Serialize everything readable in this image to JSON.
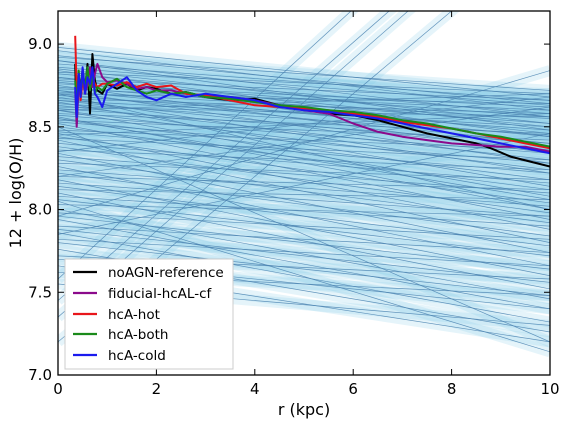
{
  "chart_data": {
    "type": "line",
    "xlabel": "r (kpc)",
    "ylabel": "12 + log(O/H)",
    "xlim": [
      0,
      10
    ],
    "ylim": [
      7.0,
      9.2
    ],
    "xticks": [
      0,
      2,
      4,
      6,
      8,
      10
    ],
    "yticks": [
      7.0,
      7.5,
      8.0,
      8.5,
      9.0
    ],
    "xtick_labels": [
      "0",
      "2",
      "4",
      "6",
      "8",
      "10"
    ],
    "ytick_labels": [
      "7.0",
      "7.5",
      "8.0",
      "8.5",
      "9.0"
    ],
    "grid": false,
    "legend_position": "lower-left",
    "observed_gradients": {
      "color": "#4a82b0",
      "band_color": "#87cde8",
      "lines": [
        [
          8.98,
          8.68
        ],
        [
          8.96,
          8.6
        ],
        [
          8.93,
          8.64
        ],
        [
          8.92,
          8.72
        ],
        [
          8.9,
          8.56
        ],
        [
          8.9,
          8.48
        ],
        [
          8.88,
          8.66
        ],
        [
          8.86,
          8.63
        ],
        [
          8.85,
          8.52
        ],
        [
          8.84,
          8.44
        ],
        [
          8.83,
          8.7
        ],
        [
          8.82,
          8.58
        ],
        [
          8.8,
          8.5
        ],
        [
          8.8,
          8.38
        ],
        [
          8.79,
          8.66
        ],
        [
          8.78,
          8.56
        ],
        [
          8.77,
          8.46
        ],
        [
          8.76,
          8.62
        ],
        [
          8.75,
          8.34
        ],
        [
          8.74,
          8.52
        ],
        [
          8.73,
          8.6
        ],
        [
          8.72,
          8.44
        ],
        [
          8.72,
          8.28
        ],
        [
          8.71,
          8.55
        ],
        [
          8.7,
          8.4
        ],
        [
          8.7,
          8.64
        ],
        [
          8.69,
          8.48
        ],
        [
          8.68,
          8.22
        ],
        [
          8.67,
          8.58
        ],
        [
          8.66,
          8.36
        ],
        [
          8.66,
          8.5
        ],
        [
          8.65,
          8.14
        ],
        [
          8.64,
          8.45
        ],
        [
          8.63,
          8.3
        ],
        [
          8.62,
          8.56
        ],
        [
          8.61,
          8.4
        ],
        [
          8.6,
          8.08
        ],
        [
          8.6,
          8.24
        ],
        [
          8.58,
          8.46
        ],
        [
          8.57,
          8.34
        ],
        [
          8.56,
          8.0
        ],
        [
          8.55,
          8.18
        ],
        [
          8.54,
          8.42
        ],
        [
          8.53,
          8.28
        ],
        [
          8.52,
          7.94
        ],
        [
          8.5,
          8.12
        ],
        [
          8.48,
          8.36
        ],
        [
          8.47,
          8.22
        ],
        [
          8.46,
          7.88
        ],
        [
          8.44,
          8.04
        ],
        [
          8.43,
          8.3
        ],
        [
          8.42,
          7.8
        ],
        [
          8.4,
          8.16
        ],
        [
          8.38,
          7.98
        ],
        [
          8.36,
          8.24
        ],
        [
          8.34,
          7.74
        ],
        [
          8.32,
          8.1
        ],
        [
          8.3,
          7.92
        ],
        [
          8.28,
          8.18
        ],
        [
          8.26,
          7.66
        ],
        [
          8.24,
          8.02
        ],
        [
          8.22,
          7.84
        ],
        [
          8.2,
          8.12
        ],
        [
          8.18,
          7.6
        ],
        [
          8.16,
          7.96
        ],
        [
          8.14,
          7.78
        ],
        [
          8.12,
          8.06
        ],
        [
          8.1,
          7.52
        ],
        [
          8.08,
          7.9
        ],
        [
          8.06,
          7.72
        ],
        [
          8.03,
          7.96
        ],
        [
          8.0,
          7.46
        ],
        [
          7.98,
          7.82
        ],
        [
          7.96,
          7.64
        ],
        [
          7.94,
          7.4
        ],
        [
          7.9,
          7.74
        ],
        [
          7.88,
          7.56
        ],
        [
          7.86,
          7.32
        ],
        [
          7.82,
          7.66
        ],
        [
          7.8,
          7.48
        ],
        [
          7.76,
          7.26
        ],
        [
          7.72,
          7.58
        ],
        [
          7.7,
          7.4
        ],
        [
          7.66,
          7.2
        ],
        [
          7.62,
          7.48
        ],
        [
          8.05,
          7.14
        ],
        [
          7.55,
          7.3
        ],
        [
          8.55,
          8.06
        ],
        [
          8.7,
          8.0
        ],
        [
          8.45,
          8.58
        ],
        [
          8.2,
          8.62
        ],
        [
          7.96,
          8.84
        ],
        [
          7.85,
          8.46
        ],
        [
          8.35,
          8.68
        ],
        [
          8.6,
          8.7
        ],
        [
          7.2,
          9.7
        ],
        [
          7.45,
          10.05
        ],
        [
          7.58,
          10.3
        ],
        [
          7.35,
          9.95
        ],
        [
          8.5,
          7.2
        ]
      ]
    },
    "series": [
      {
        "name": "noAGN-reference",
        "color": "#000000",
        "x": [
          0.35,
          0.38,
          0.42,
          0.46,
          0.5,
          0.55,
          0.6,
          0.65,
          0.7,
          0.75,
          0.8,
          0.9,
          1.0,
          1.2,
          1.4,
          1.6,
          1.8,
          2.0,
          2.3,
          2.6,
          3.0,
          3.5,
          4.0,
          4.5,
          5.0,
          5.5,
          6.0,
          6.5,
          7.0,
          7.5,
          8.0,
          8.5,
          8.8,
          9.2,
          9.6,
          10.0
        ],
        "y": [
          8.88,
          8.52,
          8.8,
          8.7,
          8.85,
          8.72,
          8.88,
          8.58,
          8.94,
          8.78,
          8.72,
          8.7,
          8.76,
          8.73,
          8.76,
          8.72,
          8.74,
          8.73,
          8.7,
          8.71,
          8.68,
          8.66,
          8.67,
          8.63,
          8.61,
          8.58,
          8.57,
          8.54,
          8.5,
          8.46,
          8.43,
          8.4,
          8.37,
          8.32,
          8.29,
          8.26
        ]
      },
      {
        "name": "fiducial-hcAL-cf",
        "color": "#8b0a8b",
        "x": [
          0.35,
          0.38,
          0.42,
          0.46,
          0.5,
          0.55,
          0.6,
          0.65,
          0.7,
          0.75,
          0.8,
          0.9,
          1.0,
          1.2,
          1.4,
          1.6,
          1.8,
          2.0,
          2.3,
          2.6,
          3.0,
          3.5,
          4.0,
          4.5,
          5.0,
          5.5,
          6.0,
          6.5,
          7.0,
          7.5,
          8.0,
          8.5,
          9.0,
          9.5,
          10.0
        ],
        "y": [
          8.72,
          8.5,
          8.76,
          8.68,
          8.8,
          8.71,
          8.75,
          8.86,
          8.74,
          8.82,
          8.88,
          8.8,
          8.77,
          8.78,
          8.76,
          8.73,
          8.74,
          8.72,
          8.72,
          8.7,
          8.69,
          8.68,
          8.66,
          8.63,
          8.6,
          8.58,
          8.52,
          8.47,
          8.44,
          8.42,
          8.4,
          8.39,
          8.38,
          8.38,
          8.35
        ]
      },
      {
        "name": "hcA-hot",
        "color": "#e8161b",
        "x": [
          0.35,
          0.38,
          0.42,
          0.46,
          0.5,
          0.55,
          0.6,
          0.65,
          0.7,
          0.75,
          0.8,
          0.9,
          1.0,
          1.2,
          1.4,
          1.6,
          1.8,
          2.0,
          2.3,
          2.6,
          3.0,
          3.5,
          4.0,
          4.5,
          5.0,
          5.5,
          6.0,
          6.5,
          7.0,
          7.5,
          8.0,
          8.5,
          9.0,
          9.5,
          10.0
        ],
        "y": [
          9.05,
          8.72,
          8.82,
          8.66,
          8.78,
          8.7,
          8.82,
          8.74,
          8.8,
          8.76,
          8.74,
          8.76,
          8.76,
          8.75,
          8.77,
          8.74,
          8.76,
          8.74,
          8.75,
          8.7,
          8.69,
          8.66,
          8.63,
          8.62,
          8.61,
          8.6,
          8.58,
          8.56,
          8.53,
          8.51,
          8.49,
          8.46,
          8.43,
          8.4,
          8.37
        ]
      },
      {
        "name": "hcA-both",
        "color": "#1a8a1a",
        "x": [
          0.35,
          0.38,
          0.42,
          0.46,
          0.5,
          0.55,
          0.6,
          0.65,
          0.7,
          0.75,
          0.8,
          0.9,
          1.0,
          1.2,
          1.4,
          1.6,
          1.8,
          2.0,
          2.3,
          2.6,
          3.0,
          3.5,
          4.0,
          4.5,
          5.0,
          5.5,
          6.0,
          6.5,
          7.0,
          7.5,
          8.0,
          8.5,
          9.0,
          9.5,
          10.0
        ],
        "y": [
          8.78,
          8.6,
          8.84,
          8.7,
          8.8,
          8.74,
          8.86,
          8.72,
          8.82,
          8.7,
          8.74,
          8.72,
          8.76,
          8.79,
          8.74,
          8.72,
          8.7,
          8.72,
          8.7,
          8.71,
          8.68,
          8.67,
          8.65,
          8.63,
          8.62,
          8.6,
          8.59,
          8.57,
          8.54,
          8.52,
          8.49,
          8.46,
          8.44,
          8.41,
          8.38
        ]
      },
      {
        "name": "hcA-cold",
        "color": "#1a1aee",
        "x": [
          0.35,
          0.38,
          0.42,
          0.46,
          0.5,
          0.55,
          0.6,
          0.65,
          0.7,
          0.75,
          0.8,
          0.9,
          1.0,
          1.2,
          1.4,
          1.6,
          1.8,
          2.0,
          2.3,
          2.6,
          3.0,
          3.5,
          4.0,
          4.5,
          5.0,
          5.5,
          6.0,
          6.5,
          7.0,
          7.5,
          8.0,
          8.5,
          9.0,
          9.5,
          10.0
        ],
        "y": [
          8.74,
          8.56,
          8.82,
          8.68,
          8.86,
          8.7,
          8.8,
          8.76,
          8.86,
          8.7,
          8.68,
          8.62,
          8.72,
          8.76,
          8.8,
          8.72,
          8.68,
          8.66,
          8.7,
          8.68,
          8.7,
          8.68,
          8.66,
          8.62,
          8.6,
          8.59,
          8.57,
          8.55,
          8.52,
          8.49,
          8.46,
          8.43,
          8.4,
          8.37,
          8.34
        ]
      }
    ]
  }
}
